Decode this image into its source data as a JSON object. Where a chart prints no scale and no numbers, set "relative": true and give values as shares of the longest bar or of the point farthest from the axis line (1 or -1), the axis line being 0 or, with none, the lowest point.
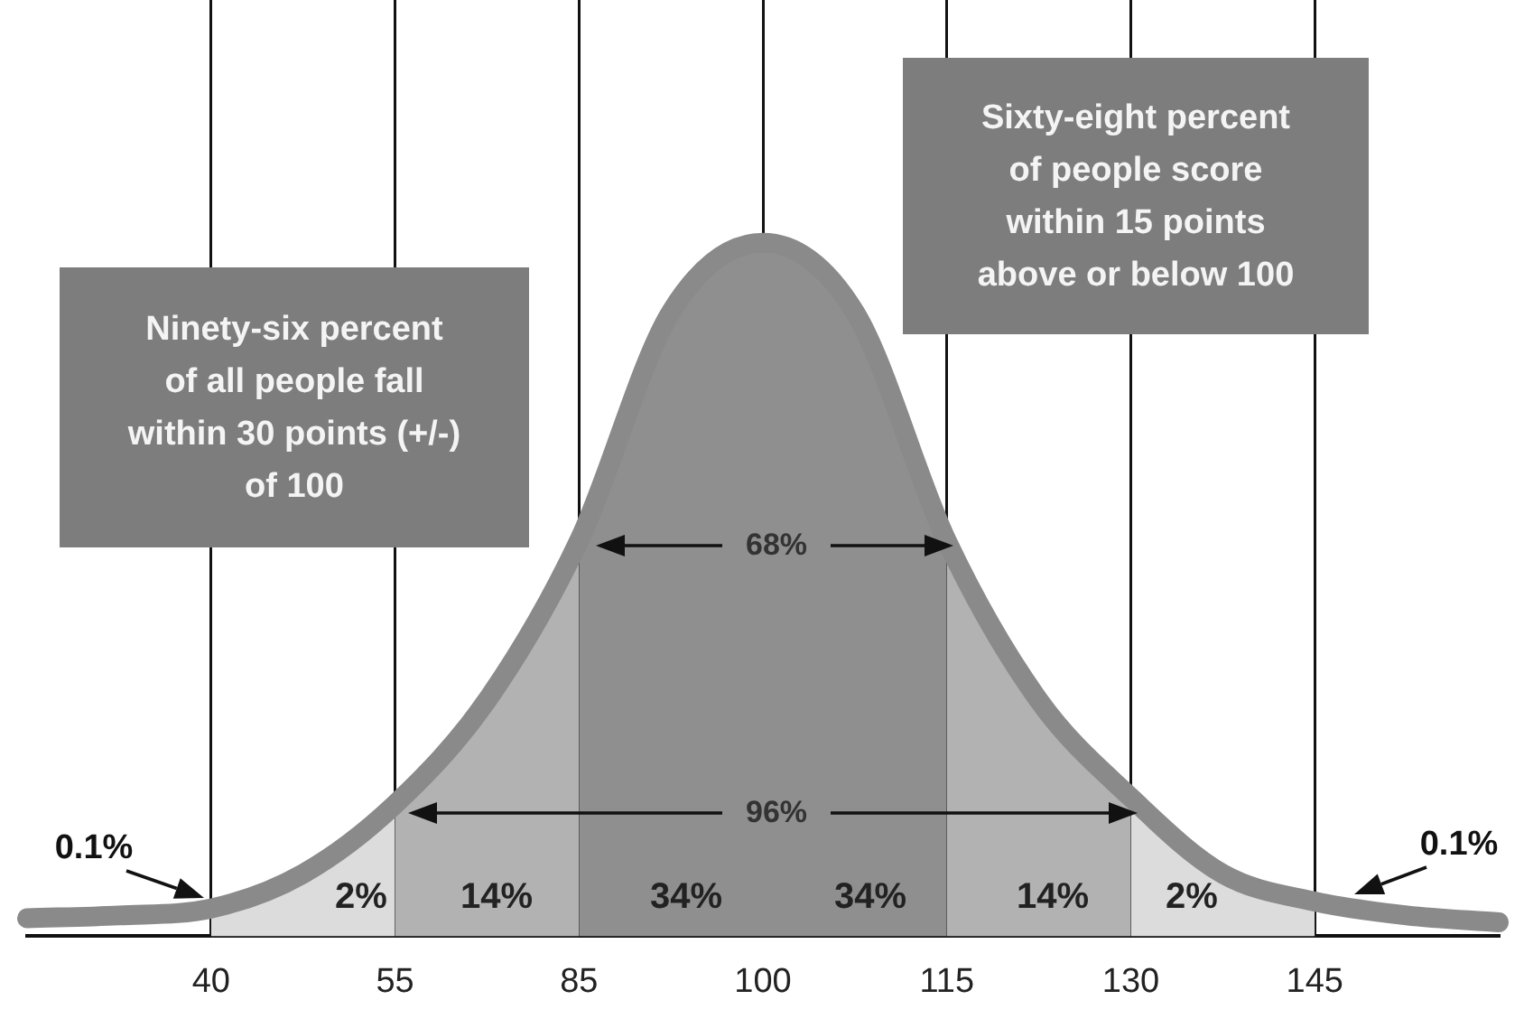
{
  "chart_data": {
    "type": "area",
    "relative": true,
    "categories": [
      null,
      null,
      "40",
      null,
      "55",
      null,
      "85",
      null,
      "100",
      null,
      "115",
      null,
      "130",
      null,
      "145",
      null,
      null
    ],
    "series": [
      {
        "type": "area",
        "color": "#dcdcdc",
        "values": [
          null,
          null,
          0.04,
          0.09,
          0.19,
          null,
          null,
          null,
          null,
          null,
          null,
          null,
          null,
          null,
          null,
          null,
          null
        ]
      },
      {
        "type": "area",
        "color": "#b2b2b2",
        "values": [
          null,
          null,
          null,
          null,
          0.19,
          0.34,
          0.57,
          null,
          null,
          null,
          null,
          null,
          null,
          null,
          null,
          null,
          null
        ]
      },
      {
        "type": "area",
        "color": "#8f8f8f",
        "values": [
          null,
          null,
          null,
          null,
          null,
          null,
          0.57,
          0.9,
          1,
          0.9,
          0.57,
          null,
          null,
          null,
          null,
          null,
          null
        ]
      },
      {
        "type": "area",
        "color": "#b2b2b2",
        "values": [
          null,
          null,
          null,
          null,
          null,
          null,
          null,
          null,
          null,
          null,
          0.57,
          0.34,
          0.2,
          null,
          null,
          null,
          null
        ]
      },
      {
        "type": "area",
        "color": "#dcdcdc",
        "values": [
          null,
          null,
          null,
          null,
          null,
          null,
          null,
          null,
          null,
          null,
          null,
          null,
          0.2,
          0.09,
          0.05,
          null,
          null
        ]
      },
      {
        "type": "line",
        "color": "#8a8a8a",
        "values": [
          0.026,
          0.03,
          0.04,
          0.09,
          0.19,
          0.34,
          0.57,
          0.9,
          1,
          0.9,
          0.57,
          0.34,
          0.2,
          0.09,
          0.05,
          0.03,
          0.02
        ]
      }
    ],
    "annotations": [
      "Ninety-six percent\nof all people fall\nwithin 30 points (+/-)\nof 100",
      "Sixty-eight percent\nof people score\nwithin 15 points\nabove or below 100",
      "68%",
      "96%",
      "0.1%",
      "0.1%",
      "2%",
      "14%",
      "34%",
      "34%",
      "14%",
      "2%"
    ],
    "grid": "x",
    "legend": false
  }
}
